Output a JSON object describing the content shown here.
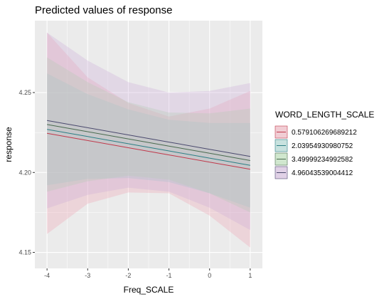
{
  "chart_data": {
    "type": "line",
    "title": "Predicted values of response",
    "xlabel": "Freq_SCALE",
    "ylabel": "response",
    "xlim": [
      -4.3,
      1.3
    ],
    "ylim": [
      4.14,
      4.295
    ],
    "x_ticks": [
      -4,
      -3,
      -2,
      -1,
      0,
      1
    ],
    "x_tick_labels": [
      "-4",
      "-3",
      "-2",
      "-1",
      "0",
      "1"
    ],
    "y_ticks": [
      4.15,
      4.2,
      4.25
    ],
    "y_tick_labels": [
      "4.15",
      "4.20",
      "4.25"
    ],
    "grid": true,
    "legend": {
      "title": "WORD_LENGTH_SCALE",
      "position": "right"
    },
    "x": [
      -4,
      -3,
      -2,
      -1,
      0,
      1
    ],
    "series": [
      {
        "name": "0.579106269689212",
        "color": "#c0394b",
        "fill": "#f0a0b0",
        "values": [
          4.2245,
          4.22,
          4.2155,
          4.211,
          4.2065,
          4.202
        ],
        "lower": [
          4.1615,
          4.1805,
          4.1875,
          4.187,
          4.173,
          4.153
        ],
        "upper": [
          4.2875,
          4.2595,
          4.2435,
          4.235,
          4.24,
          4.251
        ]
      },
      {
        "name": "2.03954930980752",
        "color": "#2c7f85",
        "fill": "#95cec8",
        "values": [
          4.227,
          4.2225,
          4.218,
          4.2135,
          4.209,
          4.2045
        ],
        "lower": [
          4.192,
          4.196,
          4.1965,
          4.194,
          4.187,
          4.178
        ],
        "upper": [
          4.262,
          4.249,
          4.2395,
          4.233,
          4.231,
          4.231
        ]
      },
      {
        "name": "3.49999234992582",
        "color": "#4a6b4f",
        "fill": "#a6d9a2",
        "values": [
          4.23,
          4.2255,
          4.221,
          4.2165,
          4.212,
          4.2075
        ],
        "lower": [
          4.188,
          4.1945,
          4.198,
          4.1955,
          4.187,
          4.175
        ],
        "upper": [
          4.272,
          4.2565,
          4.244,
          4.2375,
          4.237,
          4.24
        ]
      },
      {
        "name": "4.96043539004412",
        "color": "#4b4a6e",
        "fill": "#c9a8d8",
        "values": [
          4.2325,
          4.228,
          4.2235,
          4.219,
          4.2145,
          4.21
        ],
        "lower": [
          4.1775,
          4.186,
          4.1905,
          4.188,
          4.178,
          4.164
        ],
        "upper": [
          4.2875,
          4.27,
          4.2565,
          4.25,
          4.251,
          4.256
        ]
      }
    ]
  }
}
